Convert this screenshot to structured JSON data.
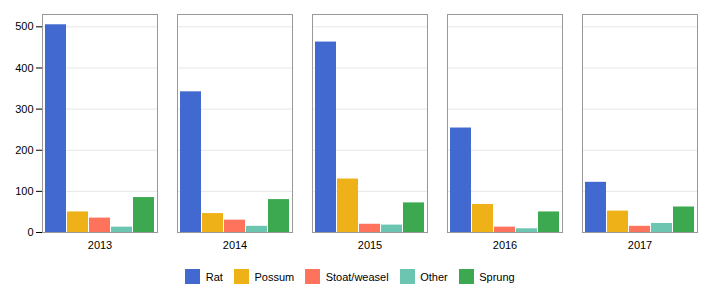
{
  "chart_data": {
    "type": "bar",
    "categories": [
      "2013",
      "2014",
      "2015",
      "2016",
      "2017"
    ],
    "series": [
      {
        "name": "Rat",
        "values": [
          505,
          342,
          463,
          254,
          122
        ]
      },
      {
        "name": "Possum",
        "values": [
          50,
          46,
          130,
          68,
          52
        ]
      },
      {
        "name": "Stoat/weasel",
        "values": [
          35,
          30,
          20,
          13,
          15
        ]
      },
      {
        "name": "Other",
        "values": [
          13,
          15,
          18,
          9,
          22
        ]
      },
      {
        "name": "Sprung",
        "values": [
          85,
          80,
          72,
          50,
          62
        ]
      }
    ],
    "ylim": [
      0,
      530
    ],
    "yticks": [
      0,
      100,
      200,
      300,
      400,
      500
    ],
    "grid": true,
    "legend": "bottom"
  }
}
